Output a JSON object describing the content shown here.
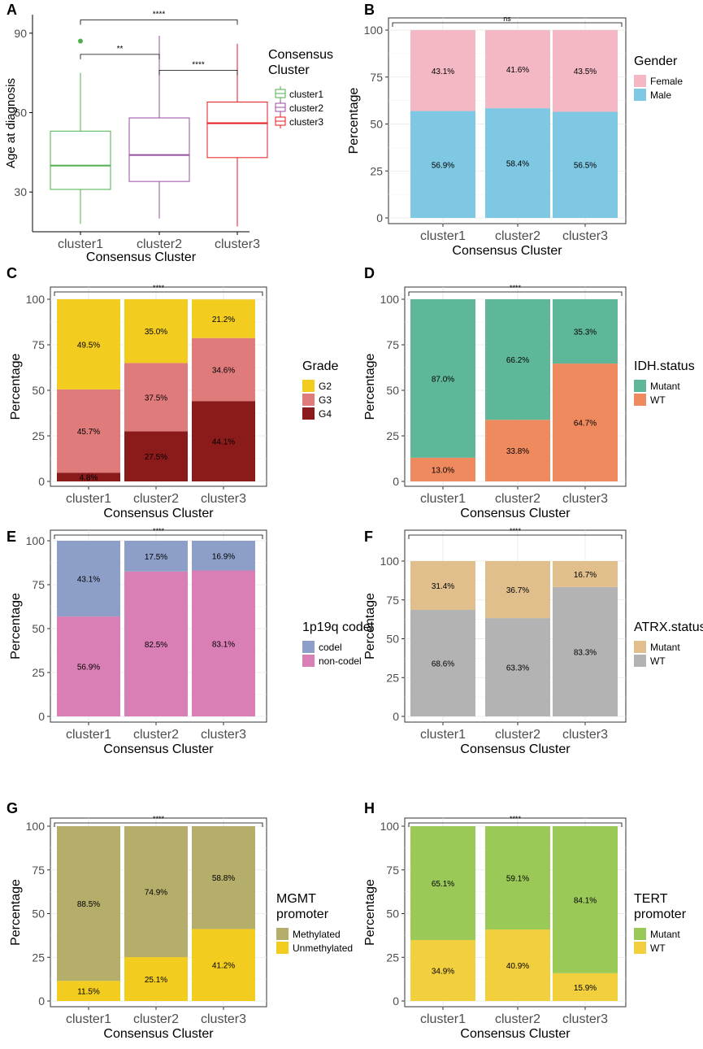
{
  "panels": [
    {
      "letter": "A",
      "chart_data": {
        "type": "box",
        "title": "",
        "xlabel": "Consensus Cluster",
        "ylabel": "Age at diagnosis",
        "ylim": [
          15,
          97
        ],
        "yticks": [
          30,
          60,
          90
        ],
        "categories": [
          "cluster1",
          "cluster2",
          "cluster3"
        ],
        "boxes": [
          {
            "name": "cluster1",
            "min": 18,
            "q1": 31,
            "median": 40,
            "q3": 53,
            "max": 75,
            "outliers": [
              87
            ],
            "color": "#4daf4a"
          },
          {
            "name": "cluster2",
            "min": 20,
            "q1": 34,
            "median": 44,
            "q3": 58,
            "max": 89,
            "outliers": [],
            "color": "#984ea3"
          },
          {
            "name": "cluster3",
            "min": 17,
            "q1": 43,
            "median": 56,
            "q3": 64,
            "max": 86,
            "outliers": [],
            "color": "#e41a1c"
          }
        ],
        "brackets": [
          {
            "from": 0,
            "to": 1,
            "y": 82,
            "label": "**"
          },
          {
            "from": 1,
            "to": 2,
            "y": 76,
            "label": "****"
          },
          {
            "from": 0,
            "to": 2,
            "y": 95,
            "label": "****"
          }
        ],
        "legend": {
          "title": [
            "Consensus",
            "Cluster"
          ],
          "items": [
            "cluster1",
            "cluster2",
            "cluster3"
          ],
          "position": "right"
        }
      }
    },
    {
      "letter": "B",
      "chart_data": {
        "type": "bar",
        "stacked": true,
        "xlabel": "Consensus Cluster",
        "ylabel": "Percentage",
        "ylim": [
          0,
          100
        ],
        "yticks": [
          0,
          25,
          50,
          75,
          100
        ],
        "categories": [
          "cluster1",
          "cluster2",
          "cluster3"
        ],
        "series": [
          {
            "name": "Male",
            "color": "#7ec8e3",
            "values": [
              56.9,
              58.4,
              56.5
            ],
            "labels": [
              "56.9%",
              "58.4%",
              "56.5%"
            ]
          },
          {
            "name": "Female",
            "color": "#f4b8c5",
            "values": [
              43.1,
              41.6,
              43.5
            ],
            "labels": [
              "43.1%",
              "41.6%",
              "43.5%"
            ]
          }
        ],
        "significance": "ns",
        "legend": {
          "title": [
            "Gender"
          ],
          "items": [
            "Female",
            "Male"
          ],
          "colors": [
            "#f4b8c5",
            "#7ec8e3"
          ],
          "position": "right"
        }
      }
    },
    {
      "letter": "C",
      "chart_data": {
        "type": "bar",
        "stacked": true,
        "xlabel": "Consensus Cluster",
        "ylabel": "Percentage",
        "ylim": [
          0,
          100
        ],
        "yticks": [
          0,
          25,
          50,
          75,
          100
        ],
        "categories": [
          "cluster1",
          "cluster2",
          "cluster3"
        ],
        "series": [
          {
            "name": "G4",
            "color": "#8b1a1a",
            "values": [
              4.8,
              27.5,
              44.1
            ],
            "labels": [
              "4.8%",
              "27.5%",
              "44.1%"
            ]
          },
          {
            "name": "G3",
            "color": "#e07b7b",
            "values": [
              45.7,
              37.5,
              34.6
            ],
            "labels": [
              "45.7%",
              "37.5%",
              "34.6%"
            ]
          },
          {
            "name": "G2",
            "color": "#f2cd1f",
            "values": [
              49.5,
              35.0,
              21.2
            ],
            "labels": [
              "49.5%",
              "35.0%",
              "21.2%"
            ]
          }
        ],
        "significance": "****",
        "legend": {
          "title": [
            "Grade"
          ],
          "items": [
            "G2",
            "G3",
            "G4"
          ],
          "colors": [
            "#f2cd1f",
            "#e07b7b",
            "#8b1a1a"
          ],
          "position": "right"
        }
      }
    },
    {
      "letter": "D",
      "chart_data": {
        "type": "bar",
        "stacked": true,
        "xlabel": "Consensus Cluster",
        "ylabel": "Percentage",
        "ylim": [
          0,
          100
        ],
        "yticks": [
          0,
          25,
          50,
          75,
          100
        ],
        "categories": [
          "cluster1",
          "cluster2",
          "cluster3"
        ],
        "series": [
          {
            "name": "WT",
            "color": "#ee8a5e",
            "values": [
              13.0,
              33.8,
              64.7
            ],
            "labels": [
              "13.0%",
              "33.8%",
              "64.7%"
            ]
          },
          {
            "name": "Mutant",
            "color": "#5fb79a",
            "values": [
              87.0,
              66.2,
              35.3
            ],
            "labels": [
              "87.0%",
              "66.2%",
              "35.3%"
            ]
          }
        ],
        "significance": "****",
        "legend": {
          "title": [
            "IDH.status"
          ],
          "items": [
            "Mutant",
            "WT"
          ],
          "colors": [
            "#5fb79a",
            "#ee8a5e"
          ],
          "position": "right"
        }
      }
    },
    {
      "letter": "E",
      "chart_data": {
        "type": "bar",
        "stacked": true,
        "xlabel": "Consensus Cluster",
        "ylabel": "Percentage",
        "ylim": [
          0,
          100
        ],
        "yticks": [
          0,
          25,
          50,
          75,
          100
        ],
        "categories": [
          "cluster1",
          "cluster2",
          "cluster3"
        ],
        "series": [
          {
            "name": "non-codel",
            "color": "#d97fb5",
            "values": [
              56.9,
              82.5,
              83.1
            ],
            "labels": [
              "56.9%",
              "82.5%",
              "83.1%"
            ]
          },
          {
            "name": "codel",
            "color": "#8d9ec8",
            "values": [
              43.1,
              17.5,
              16.9
            ],
            "labels": [
              "43.1%",
              "17.5%",
              "16.9%"
            ]
          }
        ],
        "significance": "****",
        "legend": {
          "title": [
            "1p19q codel"
          ],
          "items": [
            "codel",
            "non-codel"
          ],
          "colors": [
            "#8d9ec8",
            "#d97fb5"
          ],
          "position": "right"
        }
      }
    },
    {
      "letter": "F",
      "chart_data": {
        "type": "bar",
        "stacked": true,
        "xlabel": "Consensus Cluster",
        "ylabel": "Percentage",
        "ylim": [
          0,
          100
        ],
        "yticks": [
          0,
          25,
          50,
          75,
          100
        ],
        "categories": [
          "cluster1",
          "cluster2",
          "cluster3"
        ],
        "series": [
          {
            "name": "WT",
            "color": "#b3b3b3",
            "values": [
              68.6,
              63.3,
              83.3
            ],
            "labels": [
              "68.6%",
              "63.3%",
              "83.3%"
            ]
          },
          {
            "name": "Mutant",
            "color": "#e0bf8c",
            "values": [
              31.4,
              36.7,
              16.7
            ],
            "labels": [
              "31.4%",
              "36.7%",
              "16.7%"
            ]
          }
        ],
        "significance": "****",
        "legend": {
          "title": [
            "ATRX.status"
          ],
          "items": [
            "Mutant",
            "WT"
          ],
          "colors": [
            "#e0bf8c",
            "#b3b3b3"
          ],
          "position": "right"
        }
      }
    },
    {
      "letter": "G",
      "chart_data": {
        "type": "bar",
        "stacked": true,
        "xlabel": "Consensus Cluster",
        "ylabel": "Percentage",
        "ylim": [
          0,
          100
        ],
        "yticks": [
          0,
          25,
          50,
          75,
          100
        ],
        "categories": [
          "cluster1",
          "cluster2",
          "cluster3"
        ],
        "series": [
          {
            "name": "Unmethylated",
            "color": "#f2cd1f",
            "values": [
              11.5,
              25.1,
              41.2
            ],
            "labels": [
              "11.5%",
              "25.1%",
              "41.2%"
            ]
          },
          {
            "name": "Methylated",
            "color": "#b5ad6a",
            "values": [
              88.5,
              74.9,
              58.8
            ],
            "labels": [
              "88.5%",
              "74.9%",
              "58.8%"
            ]
          }
        ],
        "significance": "****",
        "legend": {
          "title": [
            "MGMT",
            "promoter"
          ],
          "items": [
            "Methylated",
            "Unmethylated"
          ],
          "colors": [
            "#b5ad6a",
            "#f2cd1f"
          ],
          "position": "right"
        }
      }
    },
    {
      "letter": "H",
      "chart_data": {
        "type": "bar",
        "stacked": true,
        "xlabel": "Consensus Cluster",
        "ylabel": "Percentage",
        "ylim": [
          0,
          100
        ],
        "yticks": [
          0,
          25,
          50,
          75,
          100
        ],
        "categories": [
          "cluster1",
          "cluster2",
          "cluster3"
        ],
        "series": [
          {
            "name": "WT",
            "color": "#f2cf3c",
            "values": [
              34.9,
              40.9,
              15.9
            ],
            "labels": [
              "34.9%",
              "40.9%",
              "15.9%"
            ]
          },
          {
            "name": "Mutant",
            "color": "#9bc957",
            "values": [
              65.1,
              59.1,
              84.1
            ],
            "labels": [
              "65.1%",
              "59.1%",
              "84.1%"
            ]
          }
        ],
        "significance": "****",
        "legend": {
          "title": [
            "TERT",
            "promoter"
          ],
          "items": [
            "Mutant",
            "WT"
          ],
          "colors": [
            "#9bc957",
            "#f2cf3c"
          ],
          "position": "right"
        }
      }
    }
  ]
}
